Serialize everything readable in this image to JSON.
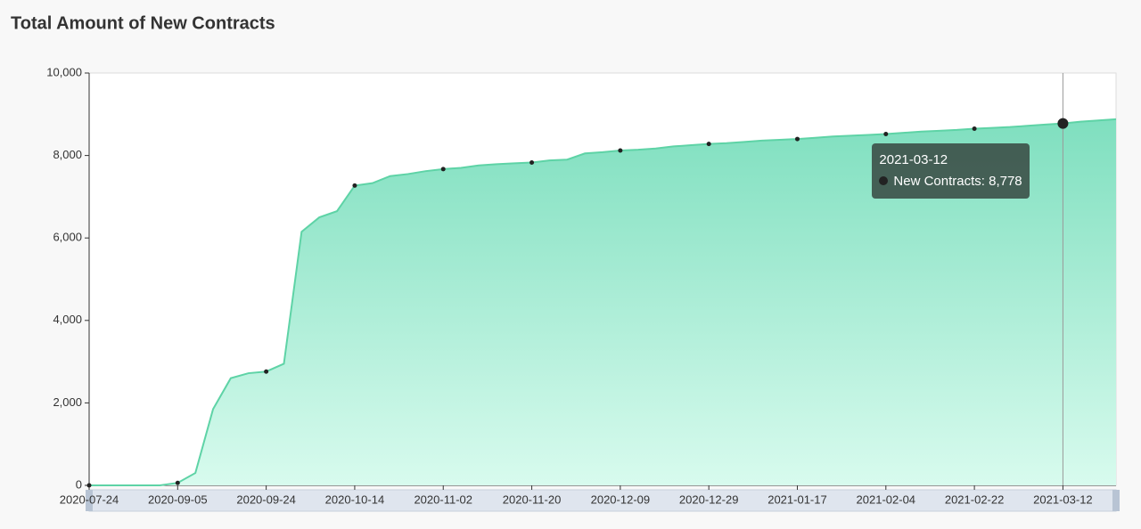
{
  "chart_data": {
    "type": "area",
    "title": "Total Amount of New Contracts",
    "color": "#5ed3a6",
    "categories": [
      "2020-07-24",
      null,
      null,
      null,
      null,
      "2020-09-05",
      null,
      null,
      null,
      null,
      "2020-09-24",
      null,
      null,
      null,
      null,
      "2020-10-14",
      null,
      null,
      null,
      null,
      "2020-11-02",
      null,
      null,
      null,
      null,
      "2020-11-20",
      null,
      null,
      null,
      null,
      "2020-12-09",
      null,
      null,
      null,
      null,
      "2020-12-29",
      null,
      null,
      null,
      null,
      "2021-01-17",
      null,
      null,
      null,
      null,
      "2021-02-04",
      null,
      null,
      null,
      null,
      "2021-02-22",
      null,
      null,
      null,
      null,
      "2021-03-12",
      null,
      null,
      null
    ],
    "values": [
      0,
      0,
      0,
      0,
      0,
      60,
      300,
      1850,
      2600,
      2720,
      2760,
      2950,
      6150,
      6500,
      6650,
      7270,
      7330,
      7500,
      7550,
      7620,
      7670,
      7700,
      7760,
      7790,
      7810,
      7830,
      7880,
      7900,
      8050,
      8080,
      8120,
      8140,
      8170,
      8220,
      8250,
      8280,
      8300,
      8330,
      8360,
      8380,
      8400,
      8430,
      8460,
      8480,
      8500,
      8520,
      8550,
      8580,
      8600,
      8620,
      8650,
      8670,
      8690,
      8720,
      8750,
      8778,
      8820,
      8850,
      8880
    ],
    "ylim": [
      0,
      10000
    ],
    "yticks": [
      0,
      {
        "value": 2000,
        "label": "2,000"
      },
      {
        "value": 4000,
        "label": "4,000"
      },
      {
        "value": 6000,
        "label": "6,000"
      },
      {
        "value": 8000,
        "label": "8,000"
      },
      {
        "value": 10000,
        "label": "10,000"
      }
    ],
    "tooltip": {
      "title": "2021-03-12",
      "text": "New Contracts: 8,778"
    }
  }
}
